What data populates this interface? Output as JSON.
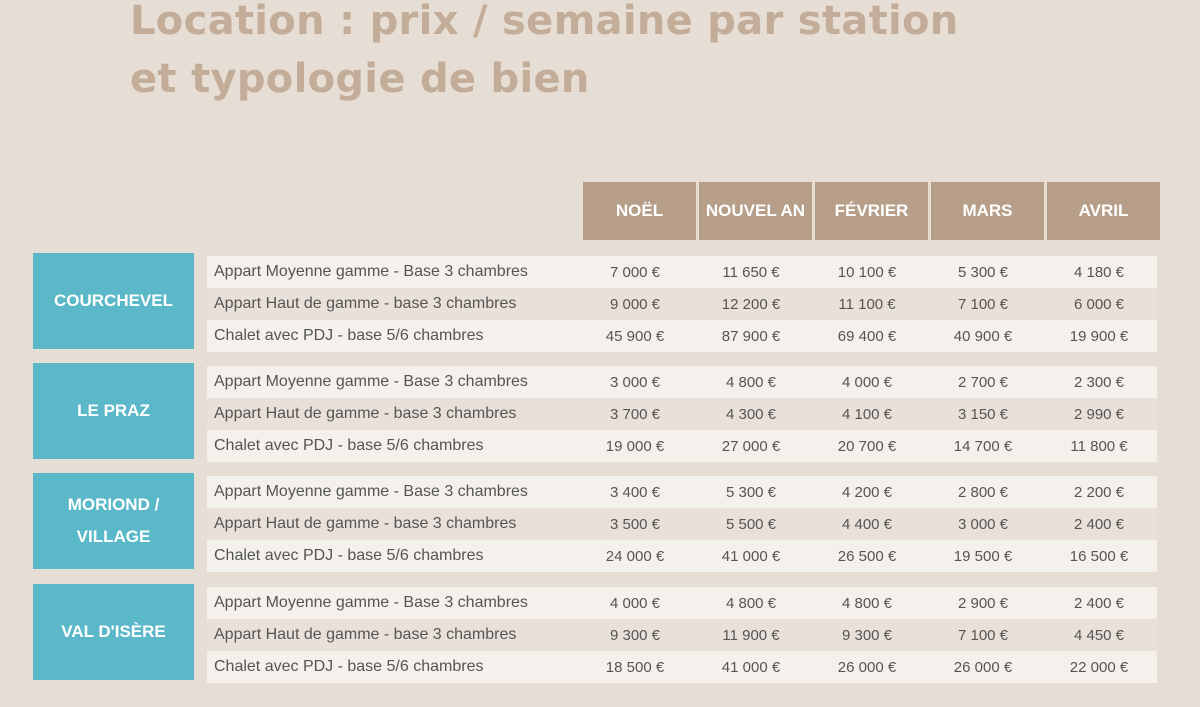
{
  "title": {
    "line1": "Location : prix / semaine par station",
    "line2": "et typologie de bien"
  },
  "months": [
    "NOËL",
    "NOUVEL AN",
    "FÉVRIER",
    "MARS",
    "AVRIL"
  ],
  "stations": [
    {
      "name": "COURCHEVEL",
      "rows": [
        {
          "label": "Appart Moyenne gamme - Base 3 chambres",
          "values": [
            "7 000 €",
            "11 650 €",
            "10 100 €",
            "5 300 €",
            "4 180 €"
          ]
        },
        {
          "label": "Appart Haut de gamme - base 3 chambres",
          "values": [
            "9 000 €",
            "12 200 €",
            "11 100 €",
            "7 100 €",
            "6 000 €"
          ]
        },
        {
          "label": "Chalet avec PDJ - base 5/6 chambres",
          "values": [
            "45 900 €",
            "87 900 €",
            "69 400 €",
            "40 900 €",
            "19 900 €"
          ]
        }
      ]
    },
    {
      "name": "LE PRAZ",
      "rows": [
        {
          "label": "Appart Moyenne gamme - Base 3 chambres",
          "values": [
            "3 000 €",
            "4 800 €",
            "4 000 €",
            "2 700 €",
            "2 300 €"
          ]
        },
        {
          "label": "Appart Haut de gamme - base 3 chambres",
          "values": [
            "3 700 €",
            "4 300 €",
            "4 100 €",
            "3 150 €",
            "2 990 €"
          ]
        },
        {
          "label": "Chalet avec PDJ - base 5/6 chambres",
          "values": [
            "19 000 €",
            "27 000 €",
            "20 700 €",
            "14 700 €",
            "11 800 €"
          ]
        }
      ]
    },
    {
      "name": "MORIOND / VILLAGE",
      "rows": [
        {
          "label": "Appart Moyenne gamme - Base 3 chambres",
          "values": [
            "3 400 €",
            "5 300 €",
            "4 200 €",
            "2 800 €",
            "2 200 €"
          ]
        },
        {
          "label": "Appart Haut de gamme - base 3 chambres",
          "values": [
            "3 500 €",
            "5 500 €",
            "4 400 €",
            "3 000 €",
            "2 400 €"
          ]
        },
        {
          "label": "Chalet avec PDJ - base 5/6 chambres",
          "values": [
            "24 000 €",
            "41 000 €",
            "26 500 €",
            "19 500 €",
            "16 500 €"
          ]
        }
      ]
    },
    {
      "name": "VAL D'ISÈRE",
      "rows": [
        {
          "label": "Appart Moyenne gamme - Base 3 chambres",
          "values": [
            "4 000 €",
            "4 800 €",
            "4 800 €",
            "2 900 €",
            "2 400 €"
          ]
        },
        {
          "label": "Appart Haut de gamme - base 3 chambres",
          "values": [
            "9 300 €",
            "11 900 €",
            "9 300 €",
            "7 100 €",
            "4 450 €"
          ]
        },
        {
          "label": "Chalet avec PDJ - base 5/6 chambres",
          "values": [
            "18 500 €",
            "41 000 €",
            "26 000 €",
            "26 000 €",
            "22 000 €"
          ]
        }
      ]
    }
  ]
}
